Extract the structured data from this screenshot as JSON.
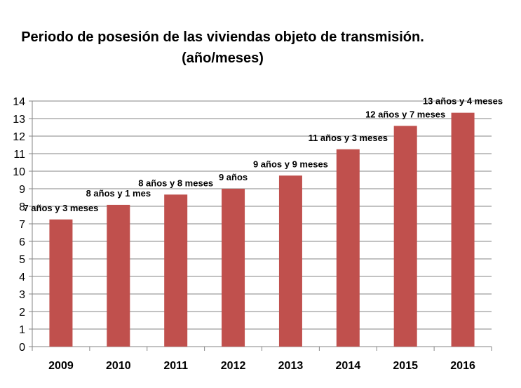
{
  "chart_data": {
    "type": "bar",
    "title": "Periodo de posesión de las viviendas objeto de transmisión.",
    "subtitle": "(año/meses)",
    "xlabel": "",
    "ylabel": "",
    "ylim": [
      0,
      14
    ],
    "yticks": [
      0,
      1,
      2,
      3,
      4,
      5,
      6,
      7,
      8,
      9,
      10,
      11,
      12,
      13,
      14
    ],
    "grid": true,
    "legend": "none",
    "bar_color": "#c0504d",
    "categories": [
      "2009",
      "2010",
      "2011",
      "2012",
      "2013",
      "2014",
      "2015",
      "2016"
    ],
    "values": [
      7.25,
      8.083,
      8.667,
      9.0,
      9.75,
      11.25,
      12.583,
      13.333
    ],
    "data_labels": [
      "7 años y 3 meses",
      "8 años y 1 mes",
      "8 años y 8 meses",
      "9 años",
      "9 años y 9 meses",
      "11 años y 3 meses",
      "12 años y 7 meses",
      "13 años y 4 meses"
    ]
  }
}
